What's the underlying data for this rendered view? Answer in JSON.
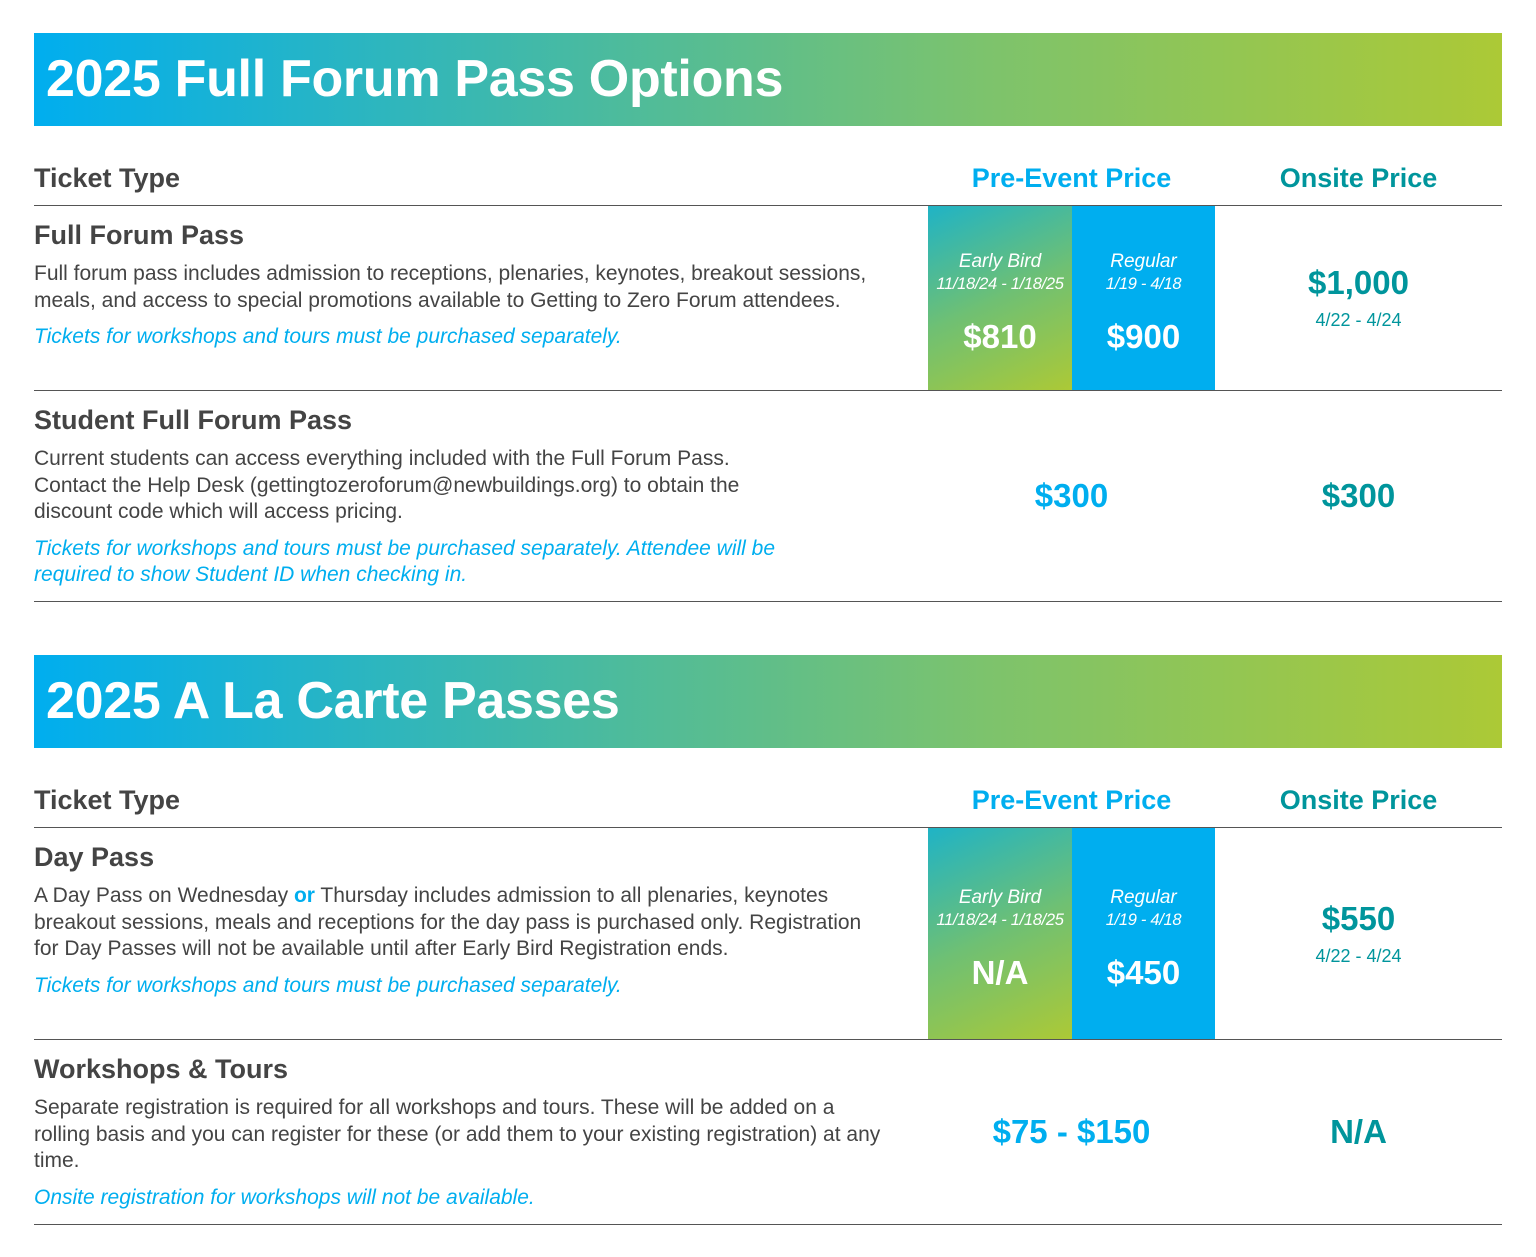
{
  "colors": {
    "blue": "#00aeef",
    "green": "#acc936",
    "teal": "#00959c",
    "text": "#444444"
  },
  "columns": {
    "ticket_type": "Ticket Type",
    "pre_event": "Pre-Event Price",
    "onsite": "Onsite Price"
  },
  "sections": [
    {
      "title": "2025 Full Forum Pass Options",
      "rows": [
        {
          "name": "Full Forum Pass",
          "description": "Full forum pass includes admission to receptions, plenaries, keynotes, breakout sessions, meals, and access to special promotions available to Getting to Zero Forum attendees.",
          "note": "Tickets for workshops and tours must be purchased separately.",
          "early_bird": {
            "label": "Early Bird",
            "dates": "11/18/24 - 1/18/25",
            "price": "$810"
          },
          "regular": {
            "label": "Regular",
            "dates": "1/19 - 4/18",
            "price": "$900"
          },
          "onsite": {
            "price": "$1,000",
            "dates": "4/22 - 4/24"
          }
        },
        {
          "name": "Student Full Forum Pass",
          "description": "Current students can access everything included with the Full Forum Pass. Contact the Help Desk (gettingtozeroforum@newbuildings.org) to obtain the discount code which will access pricing.",
          "note": "Tickets for workshops and tours must be purchased separately. Attendee will be required to show Student ID when checking in.",
          "pre_event_price": "$300",
          "onsite_price": "$300"
        }
      ]
    },
    {
      "title": "2025 A La Carte Passes",
      "rows": [
        {
          "name": "Day Pass",
          "description_parts": [
            "A Day Pass on Wednesday ",
            "or",
            " Thursday includes admission to all plenaries, keynotes breakout sessions, meals and receptions for the day pass is purchased only. Registration for Day Passes will not be available until after Early Bird Registration ends."
          ],
          "note": "Tickets for workshops and tours must be purchased separately.",
          "early_bird": {
            "label": "Early Bird",
            "dates": "11/18/24 - 1/18/25",
            "price": "N/A"
          },
          "regular": {
            "label": "Regular",
            "dates": "1/19 - 4/18",
            "price": "$450"
          },
          "onsite": {
            "price": "$550",
            "dates": "4/22 - 4/24"
          }
        },
        {
          "name": "Workshops & Tours",
          "description": "Separate registration is required for all workshops and tours. These will be added on a rolling basis and you can register for these (or add them to your existing registration) at any time.",
          "note": "Onsite registration for workshops will not be available.",
          "pre_event_price": "$75 - $150",
          "onsite_price": "N/A"
        }
      ]
    }
  ]
}
